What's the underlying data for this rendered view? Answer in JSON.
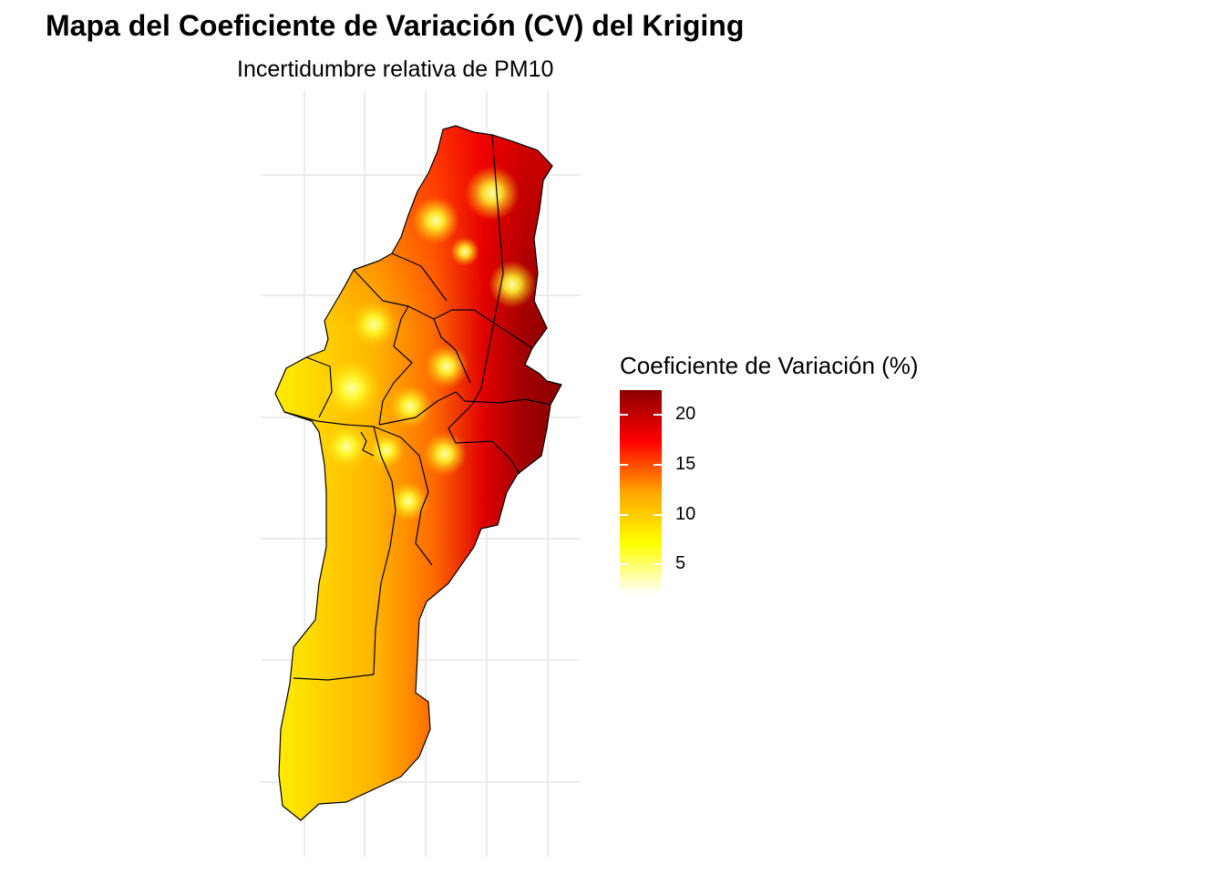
{
  "title": "Mapa del Coeficiente de Variación (CV) del Kriging",
  "subtitle": "Incertidumbre relativa de PM10",
  "legend": {
    "title": "Coeficiente de Variación (%)",
    "ticks": [
      "20",
      "15",
      "10",
      "5"
    ],
    "tick_values": [
      20,
      15,
      10,
      5
    ],
    "range": [
      2,
      22.5
    ],
    "colors": [
      "#ffffff",
      "#ffff00",
      "#ffa500",
      "#ff0000",
      "#8b0000"
    ]
  },
  "map": {
    "fill_low_color": "#ffea00",
    "fill_high_color": "#8b0000",
    "hotspot_color": "#ffff55",
    "boundary_color": "#000000",
    "grid_color": "#ebebeb"
  }
}
